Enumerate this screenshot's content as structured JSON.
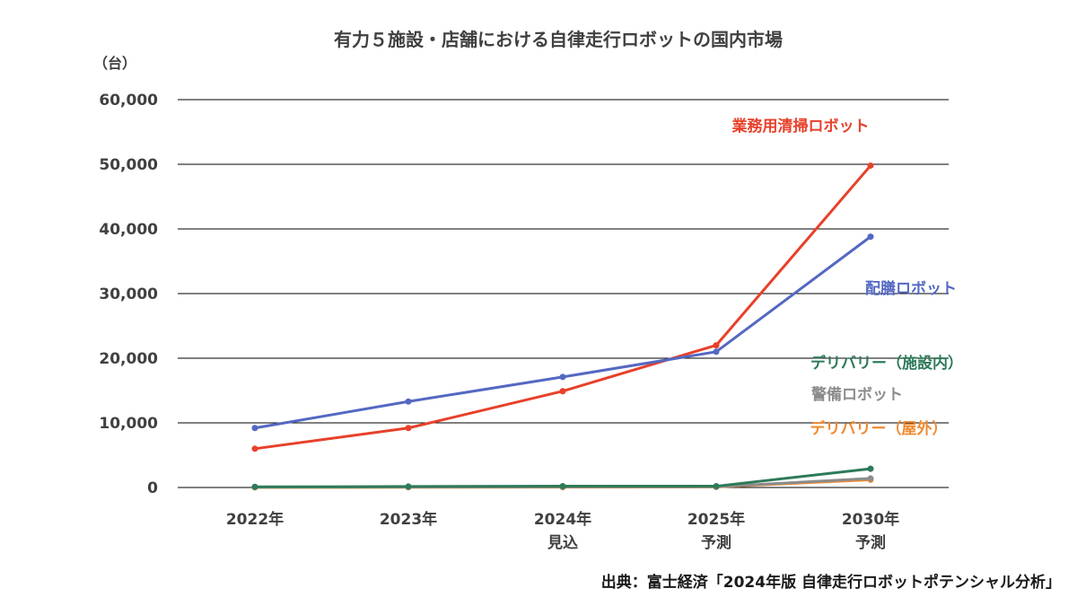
{
  "chart_data": {
    "type": "line",
    "title": "有力５施設・店舗における自律走行ロボットの国内市場",
    "unit_label": "（台）",
    "categories": [
      {
        "line1": "2022年",
        "line2": ""
      },
      {
        "line1": "2023年",
        "line2": ""
      },
      {
        "line1": "2024年",
        "line2": "見込"
      },
      {
        "line1": "2025年",
        "line2": "予測"
      },
      {
        "line1": "2030年",
        "line2": "予測"
      }
    ],
    "y_ticks": [
      "0",
      "10,000",
      "20,000",
      "30,000",
      "40,000",
      "50,000",
      "60,000"
    ],
    "ylim": [
      0,
      60000
    ],
    "grid": true,
    "series": [
      {
        "name": "業務用清掃ロボット",
        "color": "#e8402a",
        "values": [
          6000,
          9200,
          14900,
          22000,
          49800
        ]
      },
      {
        "name": "配膳ロボット",
        "color": "#5468c2",
        "values": [
          9200,
          13300,
          17100,
          21000,
          38800
        ]
      },
      {
        "name": "デリバリー（施設内）",
        "color": "#2e7a5a",
        "values": [
          100,
          150,
          200,
          200,
          2900
        ]
      },
      {
        "name": "警備ロボット",
        "color": "#8c8c8c",
        "values": [
          60,
          80,
          100,
          120,
          1400
        ]
      },
      {
        "name": "デリバリー（屋外）",
        "color": "#f08a30",
        "values": [
          20,
          30,
          50,
          80,
          1200
        ]
      }
    ],
    "source": "出典：富士経済「2024年版 自律走行ロボットポテンシャル分析」"
  }
}
